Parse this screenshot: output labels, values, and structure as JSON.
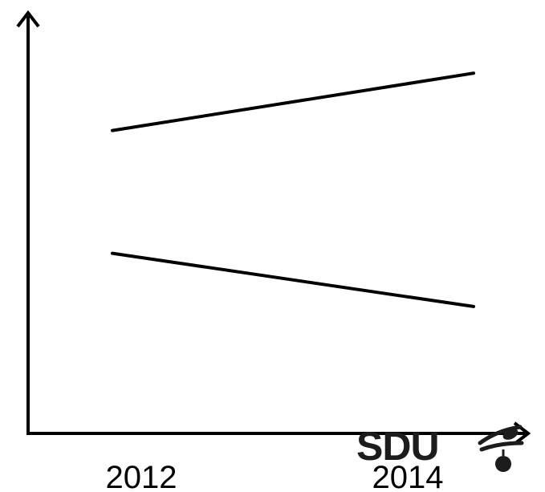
{
  "chart_data": {
    "type": "line",
    "title": "",
    "xlabel": "",
    "ylabel": "",
    "categories": [
      "2012",
      "2014"
    ],
    "grid": false,
    "legend": "none",
    "series": [
      {
        "values": [
          0.74,
          0.88
        ]
      },
      {
        "values": [
          0.44,
          0.31
        ]
      }
    ],
    "ylim": [
      0,
      1
    ],
    "colors": {
      "axis": "#000000",
      "line": "#000000",
      "logo": "#1c1c1c"
    }
  },
  "logo": {
    "text": "SDU"
  }
}
